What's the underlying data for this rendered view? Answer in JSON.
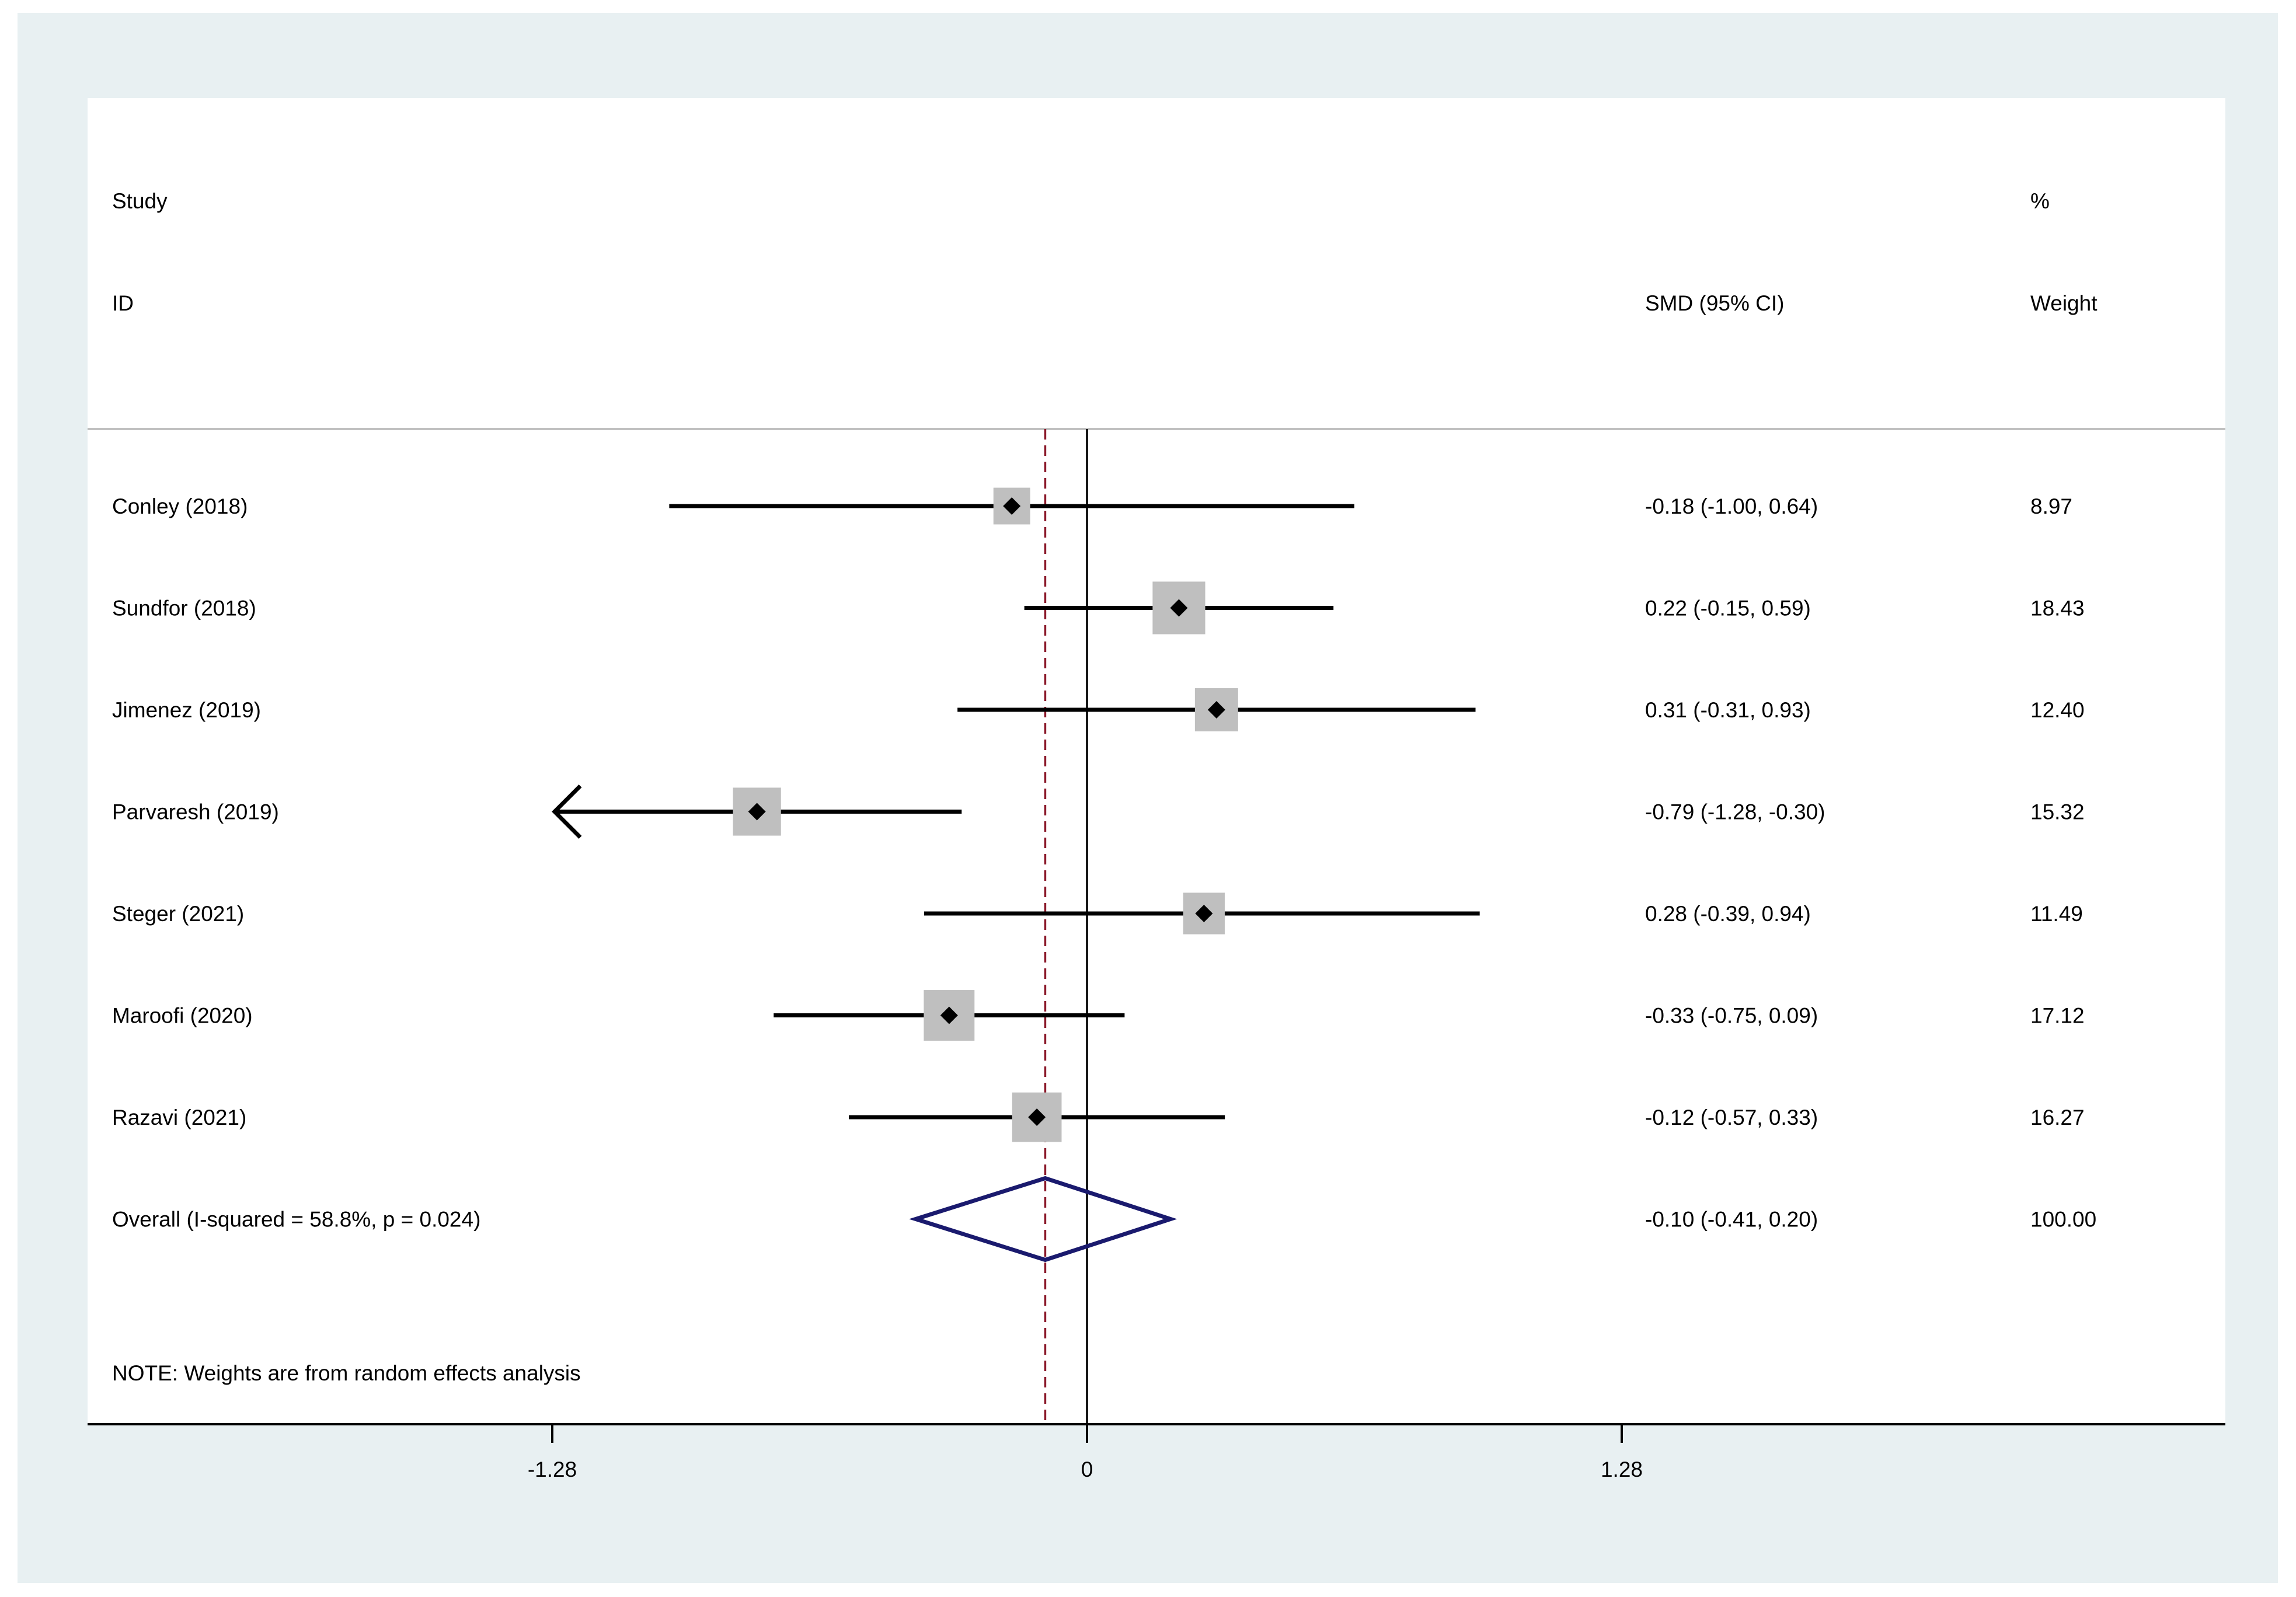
{
  "chart_data": {
    "type": "forest",
    "header": {
      "study_line1": "Study",
      "study_line2": "ID",
      "effect_label": "SMD (95% CI)",
      "weight_line1": "%",
      "weight_line2": "Weight"
    },
    "studies": [
      {
        "label": "Conley  (2018)",
        "smd": -0.18,
        "lower": -1.0,
        "upper": 0.64,
        "ci_text": "-0.18 (-1.00, 0.64)",
        "weight": 8.97,
        "weight_text": "8.97"
      },
      {
        "label": "Sundfor  (2018)",
        "smd": 0.22,
        "lower": -0.15,
        "upper": 0.59,
        "ci_text": "0.22 (-0.15, 0.59)",
        "weight": 18.43,
        "weight_text": "18.43"
      },
      {
        "label": "Jimenez  (2019)",
        "smd": 0.31,
        "lower": -0.31,
        "upper": 0.93,
        "ci_text": "0.31 (-0.31, 0.93)",
        "weight": 12.4,
        "weight_text": "12.40"
      },
      {
        "label": "Parvaresh (2019)",
        "smd": -0.79,
        "lower": -1.28,
        "upper": -0.3,
        "ci_text": "-0.79 (-1.28, -0.30)",
        "weight": 15.32,
        "weight_text": "15.32"
      },
      {
        "label": "Steger (2021)",
        "smd": 0.28,
        "lower": -0.39,
        "upper": 0.94,
        "ci_text": "0.28 (-0.39, 0.94)",
        "weight": 11.49,
        "weight_text": "11.49"
      },
      {
        "label": "Maroofi (2020)",
        "smd": -0.33,
        "lower": -0.75,
        "upper": 0.09,
        "ci_text": "-0.33 (-0.75, 0.09)",
        "weight": 17.12,
        "weight_text": "17.12"
      },
      {
        "label": "Razavi (2021)",
        "smd": -0.12,
        "lower": -0.57,
        "upper": 0.33,
        "ci_text": "-0.12 (-0.57, 0.33)",
        "weight": 16.27,
        "weight_text": "16.27"
      }
    ],
    "overall": {
      "label": "Overall  (I-squared = 58.8%, p = 0.024)",
      "smd": -0.1,
      "lower": -0.41,
      "upper": 0.2,
      "ci_text": "-0.10 (-0.41, 0.20)",
      "weight_text": "100.00"
    },
    "note": "NOTE: Weights are from random effects analysis",
    "x_ticks": [
      {
        "value": -1.28,
        "label": "-1.28"
      },
      {
        "value": 0,
        "label": "0"
      },
      {
        "value": 1.28,
        "label": "1.28"
      }
    ],
    "xlim": [
      -2.4,
      2.72
    ],
    "null_line": 0,
    "colors": {
      "background": "#e8f0f2",
      "panel": "#ffffff",
      "ci_line": "#000000",
      "weight_box": "#bfbfbf",
      "point": "#000000",
      "overall_diamond": "#1a1a6e",
      "overall_line": "#8b1a2b",
      "header_rule": "#c0c0c0"
    }
  }
}
